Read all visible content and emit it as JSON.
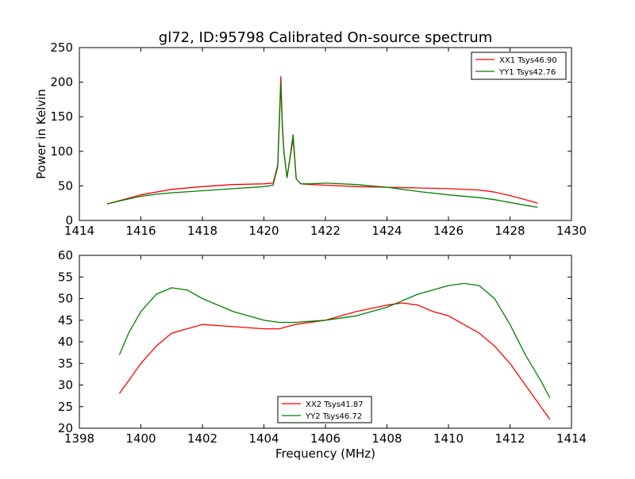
{
  "figure": {
    "title": "gl72, ID:95798 Calibrated On-source spectrum",
    "xlabel": "Frequency (MHz)"
  },
  "chart_data": [
    {
      "type": "line",
      "title": "gl72, ID:95798 Calibrated On-source spectrum",
      "xlabel": "",
      "ylabel": "Power in Kelvin",
      "xlim": [
        1414,
        1430
      ],
      "ylim": [
        0,
        250
      ],
      "xticks": [
        1414,
        1416,
        1418,
        1420,
        1422,
        1424,
        1426,
        1428,
        1430
      ],
      "yticks": [
        0,
        50,
        100,
        150,
        200,
        250
      ],
      "grid": false,
      "legend_position": "top-right",
      "series": [
        {
          "name": "XX1 Tsys46.90",
          "color": "#ff0000",
          "x": [
            1414.9,
            1415.5,
            1416.0,
            1416.5,
            1417.0,
            1418.0,
            1419.0,
            1420.0,
            1420.3,
            1420.45,
            1420.55,
            1420.6,
            1420.65,
            1420.75,
            1420.85,
            1420.95,
            1421.05,
            1421.2,
            1421.5,
            1422.0,
            1423.0,
            1424.0,
            1425.0,
            1426.0,
            1427.0,
            1427.5,
            1428.0,
            1428.5,
            1428.9
          ],
          "values": [
            24,
            31,
            37,
            41,
            45,
            49,
            52,
            53,
            54,
            80,
            208,
            140,
            100,
            62,
            90,
            118,
            60,
            53,
            52,
            51,
            49,
            48,
            47,
            46,
            44,
            41,
            36,
            30,
            25
          ]
        },
        {
          "name": "YY1 Tsys42.76",
          "color": "#008000",
          "x": [
            1414.9,
            1415.5,
            1416.0,
            1416.5,
            1417.0,
            1418.0,
            1419.0,
            1420.0,
            1420.3,
            1420.45,
            1420.55,
            1420.6,
            1420.65,
            1420.75,
            1420.85,
            1420.95,
            1421.05,
            1421.2,
            1421.5,
            1422.0,
            1423.0,
            1424.0,
            1425.0,
            1426.0,
            1427.0,
            1427.5,
            1428.0,
            1428.5,
            1428.9
          ],
          "values": [
            24,
            30,
            35,
            38,
            40,
            43,
            46,
            49,
            51,
            78,
            198,
            135,
            98,
            62,
            92,
            124,
            60,
            53,
            53,
            54,
            52,
            48,
            42,
            37,
            33,
            30,
            26,
            22,
            19
          ]
        }
      ]
    },
    {
      "type": "line",
      "xlabel": "Frequency (MHz)",
      "ylabel": "",
      "xlim": [
        1398,
        1414
      ],
      "ylim": [
        20,
        60
      ],
      "xticks": [
        1398,
        1400,
        1402,
        1404,
        1406,
        1408,
        1410,
        1412,
        1414
      ],
      "yticks": [
        20,
        25,
        30,
        35,
        40,
        45,
        50,
        55,
        60
      ],
      "grid": false,
      "legend_position": "bottom-center",
      "series": [
        {
          "name": "XX2 Tsys41.87",
          "color": "#ff0000",
          "x": [
            1399.3,
            1399.6,
            1400.0,
            1400.5,
            1401.0,
            1401.5,
            1402.0,
            1403.0,
            1404.0,
            1404.5,
            1405.0,
            1406.0,
            1407.0,
            1408.0,
            1408.5,
            1409.0,
            1409.5,
            1410.0,
            1410.5,
            1411.0,
            1411.5,
            1412.0,
            1412.5,
            1413.0,
            1413.3
          ],
          "values": [
            28,
            31,
            35,
            39,
            42,
            43,
            44,
            43.5,
            43,
            43,
            44,
            45,
            47,
            48.5,
            49,
            48.5,
            47,
            46,
            44,
            42,
            39,
            35,
            30,
            25,
            22
          ]
        },
        {
          "name": "YY2 Tsys46.72",
          "color": "#008000",
          "x": [
            1399.3,
            1399.6,
            1400.0,
            1400.5,
            1401.0,
            1401.5,
            1402.0,
            1403.0,
            1404.0,
            1404.5,
            1405.0,
            1406.0,
            1407.0,
            1408.0,
            1408.5,
            1409.0,
            1409.5,
            1410.0,
            1410.5,
            1411.0,
            1411.5,
            1412.0,
            1412.5,
            1413.0,
            1413.3
          ],
          "values": [
            37,
            42,
            47,
            51,
            52.5,
            52,
            50,
            47,
            45,
            44.5,
            44.5,
            45,
            46,
            48,
            49.5,
            51,
            52,
            53,
            53.5,
            53,
            50,
            44,
            37,
            31,
            27
          ]
        }
      ]
    }
  ]
}
